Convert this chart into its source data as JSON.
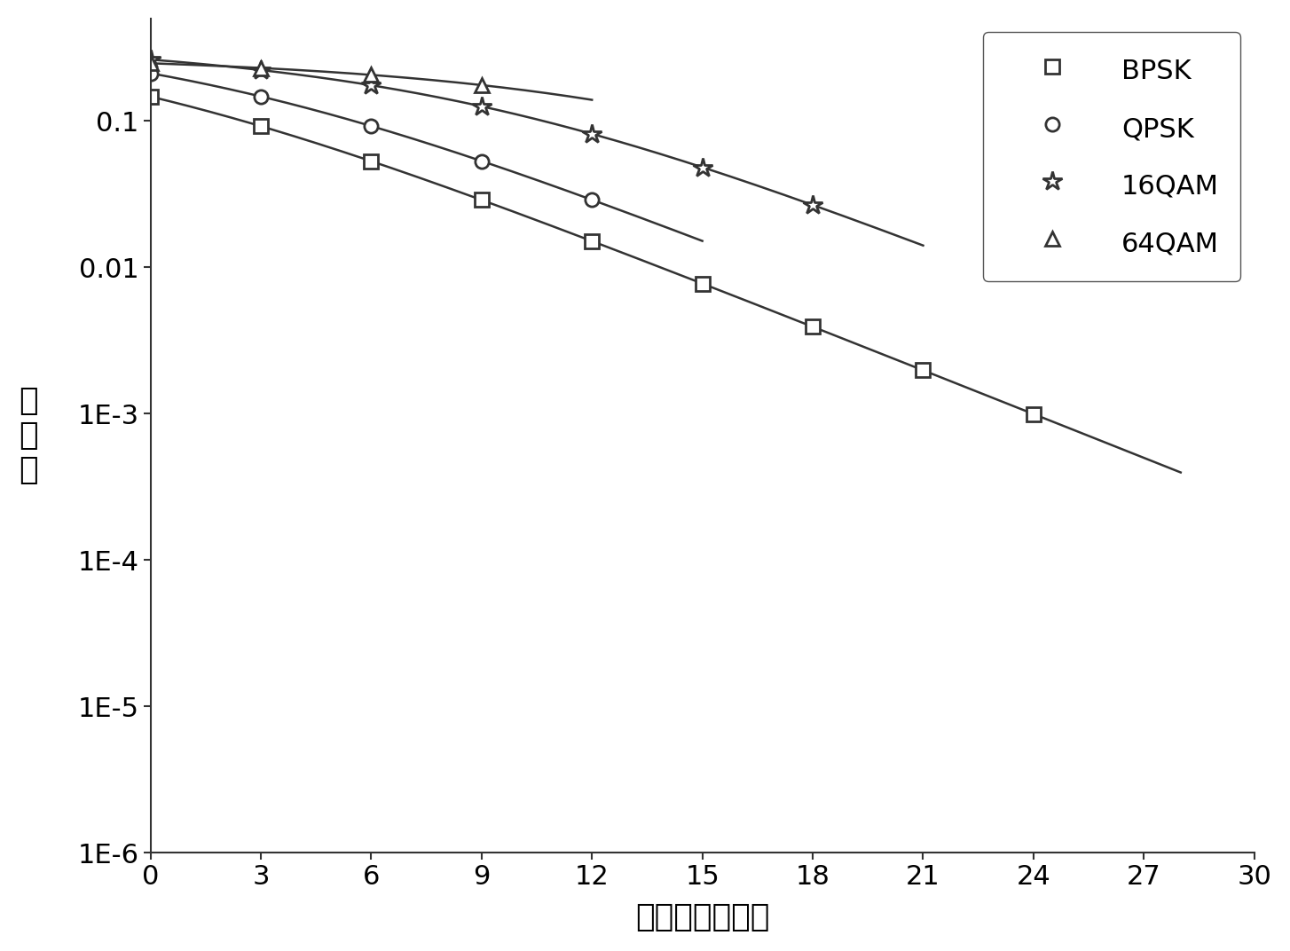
{
  "title": "",
  "xlabel": "信道平均信噪比",
  "ylabel": "误\n码\n率",
  "xlim": [
    0,
    30
  ],
  "xticks": [
    0,
    3,
    6,
    9,
    12,
    15,
    18,
    21,
    24,
    27,
    30
  ],
  "ytick_labels": [
    "1E-6",
    "1E-5",
    "1E-4",
    "1E-3",
    "0.01",
    "0.1"
  ],
  "ytick_values": [
    1e-06,
    1e-05,
    0.0001,
    0.001,
    0.01,
    0.1
  ],
  "line_color": "#333333",
  "background_color": "#ffffff",
  "marker_size": 11,
  "line_width": 1.8,
  "tick_font_size": 22,
  "label_font_size": 26,
  "legend_font_size": 22
}
